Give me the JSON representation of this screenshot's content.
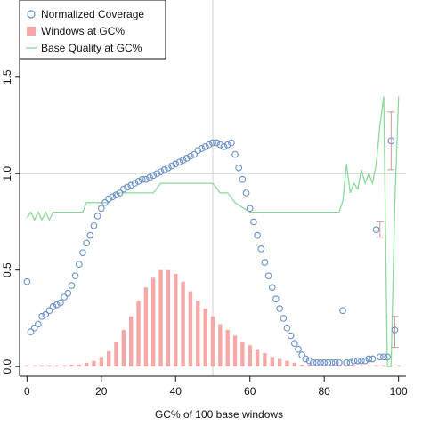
{
  "chart_data": {
    "type": "scatter",
    "title": "",
    "xlabel": "GC% of 100 base windows",
    "ylabel": "",
    "xlim": [
      -2,
      102
    ],
    "ylim": [
      -0.05,
      1.9
    ],
    "x_ticks": [
      0,
      20,
      40,
      60,
      80,
      100
    ],
    "y_ticks": [
      0.0,
      0.5,
      1.0,
      1.5
    ],
    "reference_lines": {
      "x": 50,
      "y": 1.0
    },
    "legend_position": "top-left",
    "legend": [
      {
        "label": "Normalized Coverage",
        "marker": "circle",
        "color": "#6a8fc9"
      },
      {
        "label": "Windows at GC%",
        "marker": "square",
        "color": "#f4a8a8"
      },
      {
        "label": "Base Quality at GC%",
        "marker": "line",
        "color": "#8ed89a"
      }
    ],
    "series": [
      {
        "name": "Normalized Coverage",
        "kind": "points",
        "color": "#6a8fc9",
        "x": [
          0,
          1,
          2,
          3,
          4,
          5,
          6,
          7,
          8,
          9,
          10,
          11,
          12,
          13,
          14,
          15,
          16,
          17,
          18,
          19,
          20,
          21,
          22,
          23,
          24,
          25,
          26,
          27,
          28,
          29,
          30,
          31,
          32,
          33,
          34,
          35,
          36,
          37,
          38,
          39,
          40,
          41,
          42,
          43,
          44,
          45,
          46,
          47,
          48,
          49,
          50,
          51,
          52,
          53,
          54,
          55,
          56,
          57,
          58,
          59,
          60,
          61,
          62,
          63,
          64,
          65,
          66,
          67,
          68,
          69,
          70,
          71,
          72,
          73,
          74,
          75,
          76,
          77,
          78,
          79,
          80,
          81,
          82,
          83,
          84,
          85,
          86,
          87,
          88,
          89,
          90,
          91,
          92,
          93,
          94,
          95,
          96,
          97,
          98,
          99
        ],
        "y": [
          0.44,
          0.18,
          0.2,
          0.22,
          0.26,
          0.27,
          0.29,
          0.31,
          0.32,
          0.33,
          0.36,
          0.38,
          0.42,
          0.47,
          0.53,
          0.59,
          0.64,
          0.68,
          0.73,
          0.78,
          0.82,
          0.85,
          0.87,
          0.88,
          0.89,
          0.9,
          0.92,
          0.93,
          0.94,
          0.95,
          0.96,
          0.97,
          0.97,
          0.98,
          0.99,
          1.0,
          1.01,
          1.02,
          1.03,
          1.04,
          1.05,
          1.06,
          1.07,
          1.08,
          1.09,
          1.1,
          1.12,
          1.13,
          1.14,
          1.15,
          1.16,
          1.16,
          1.15,
          1.14,
          1.15,
          1.16,
          1.1,
          1.03,
          0.97,
          0.9,
          0.82,
          0.75,
          0.68,
          0.61,
          0.54,
          0.47,
          0.41,
          0.35,
          0.3,
          0.25,
          0.2,
          0.16,
          0.12,
          0.09,
          0.06,
          0.04,
          0.03,
          0.02,
          0.02,
          0.02,
          0.02,
          0.02,
          0.02,
          0.02,
          0.02,
          0.29,
          0.02,
          0.02,
          0.03,
          0.03,
          0.03,
          0.03,
          0.04,
          0.04,
          0.71,
          0.05,
          0.05,
          0.05,
          1.17,
          0.19
        ]
      },
      {
        "name": "Windows at GC%",
        "kind": "bars",
        "color": "#f4a8a8",
        "x": [
          0,
          2,
          4,
          6,
          8,
          10,
          12,
          14,
          16,
          18,
          20,
          22,
          24,
          26,
          28,
          30,
          32,
          34,
          36,
          38,
          40,
          42,
          44,
          46,
          48,
          50,
          52,
          54,
          56,
          58,
          60,
          62,
          64,
          66,
          68,
          70,
          72,
          74,
          76,
          78,
          80,
          82,
          84,
          86,
          88,
          90,
          92,
          94,
          96,
          98,
          100
        ],
        "y": [
          0.0,
          0.0,
          0.0,
          0.0,
          0.0,
          0.0,
          0.01,
          0.01,
          0.02,
          0.03,
          0.05,
          0.08,
          0.13,
          0.19,
          0.26,
          0.34,
          0.41,
          0.46,
          0.5,
          0.5,
          0.48,
          0.44,
          0.39,
          0.34,
          0.3,
          0.26,
          0.22,
          0.19,
          0.16,
          0.13,
          0.11,
          0.09,
          0.07,
          0.05,
          0.04,
          0.03,
          0.02,
          0.01,
          0.01,
          0.0,
          0.0,
          0.0,
          0.0,
          0.0,
          0.0,
          0.0,
          0.0,
          0.0,
          0.0,
          0.0,
          0.0
        ]
      },
      {
        "name": "Base Quality at GC%",
        "kind": "line",
        "color": "#8ed89a",
        "x": [
          0,
          1,
          2,
          3,
          4,
          5,
          6,
          7,
          8,
          10,
          12,
          14,
          15,
          16,
          18,
          20,
          22,
          24,
          26,
          28,
          30,
          32,
          34,
          36,
          38,
          40,
          42,
          44,
          46,
          48,
          50,
          52,
          54,
          56,
          60,
          70,
          80,
          84,
          85,
          86,
          87,
          88,
          89,
          90,
          91,
          92,
          93,
          94,
          95,
          96,
          97,
          98,
          99,
          100
        ],
        "y": [
          0.77,
          0.8,
          0.76,
          0.8,
          0.76,
          0.8,
          0.76,
          0.8,
          0.8,
          0.8,
          0.8,
          0.8,
          0.8,
          0.85,
          0.85,
          0.85,
          0.85,
          0.9,
          0.9,
          0.9,
          0.9,
          0.9,
          0.9,
          0.95,
          0.95,
          0.95,
          0.95,
          0.95,
          0.95,
          0.95,
          0.95,
          0.9,
          0.9,
          0.85,
          0.8,
          0.8,
          0.8,
          0.8,
          0.86,
          1.05,
          0.9,
          0.95,
          0.92,
          1.02,
          0.95,
          1.0,
          0.95,
          1.05,
          1.25,
          1.4,
          0.0,
          0.0,
          0.85,
          1.4
        ]
      }
    ],
    "error_bars": [
      {
        "x": 95,
        "lo": 0.67,
        "hi": 0.75
      },
      {
        "x": 98,
        "lo": 1.02,
        "hi": 1.32
      },
      {
        "x": 99,
        "lo": 0.1,
        "hi": 0.26
      }
    ]
  }
}
